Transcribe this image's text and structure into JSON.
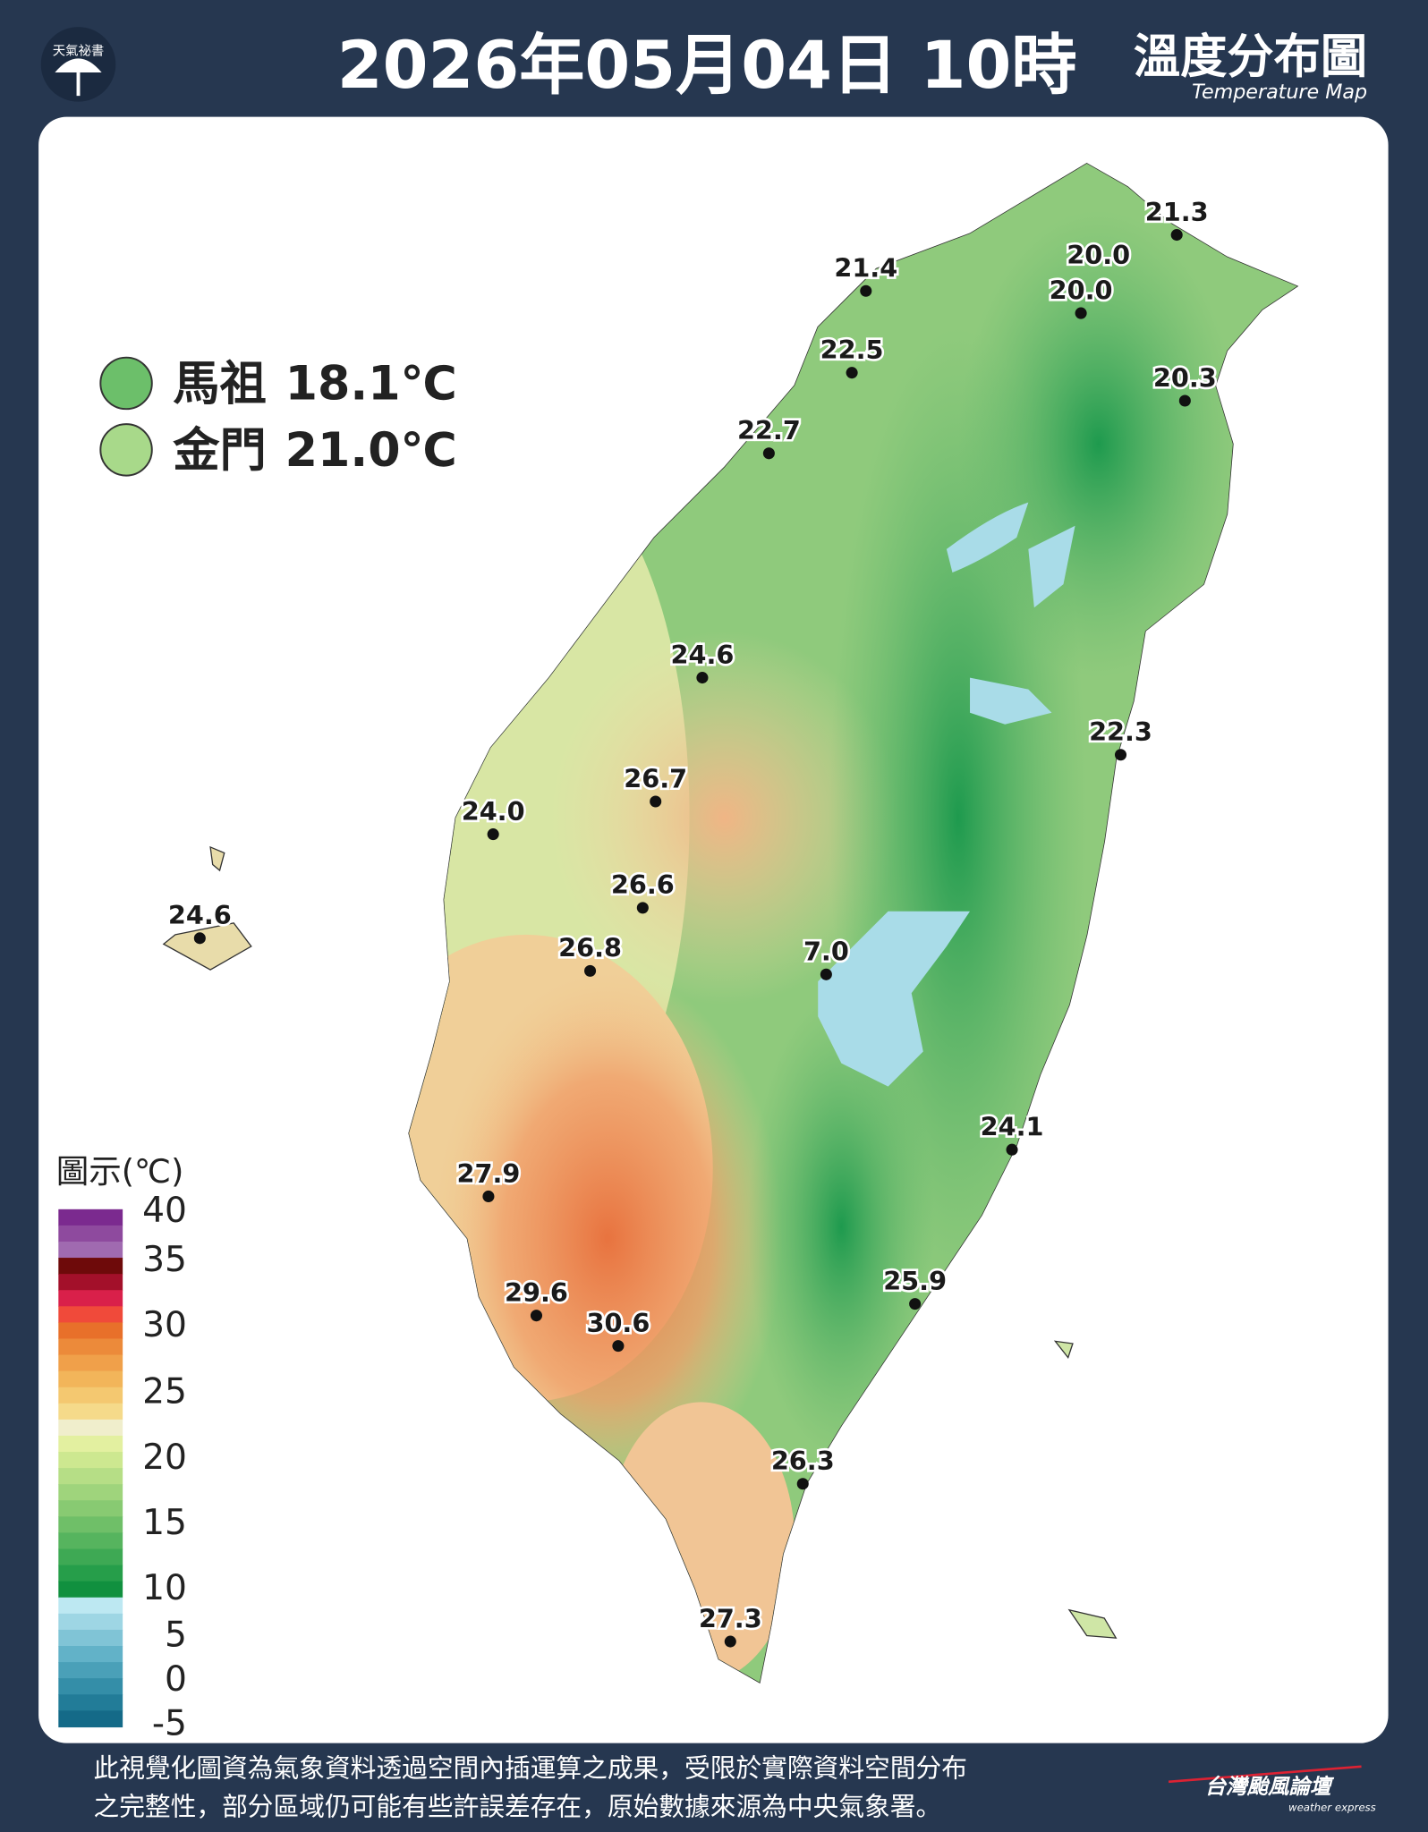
{
  "header": {
    "logo": "天氣祕書",
    "title": "2026年05月04日 10時",
    "map_title": "溫度分布圖",
    "map_subtitle": "Temperature Map"
  },
  "islands": [
    {
      "name": "馬祖",
      "value": "18.1℃"
    },
    {
      "name": "金門",
      "value": "21.0℃"
    }
  ],
  "stations": [
    "21.3",
    "20.0",
    "20.0",
    "21.4",
    "22.5",
    "22.7",
    "20.3",
    "24.6",
    "22.3",
    "26.7",
    "24.0",
    "26.6",
    "24.6",
    "26.8",
    "7.0",
    "24.1",
    "27.9",
    "25.9",
    "29.6",
    "30.6",
    "26.3",
    "27.3"
  ],
  "legend": {
    "title": "圖示(℃)",
    "ticks": [
      "40",
      "35",
      "30",
      "25",
      "20",
      "15",
      "10",
      "5",
      "0",
      "-5"
    ]
  },
  "footer": {
    "lines": [
      "此視覺化圖資為氣象資料透過空間內插運算之成果，受限於實際資料空間分布",
      "之完整性，部分區域仍可能有些許誤差存在，原始數據來源為中央氣象署。"
    ],
    "brand": "台灣颱風論壇",
    "brand_sub": "weather express"
  }
}
